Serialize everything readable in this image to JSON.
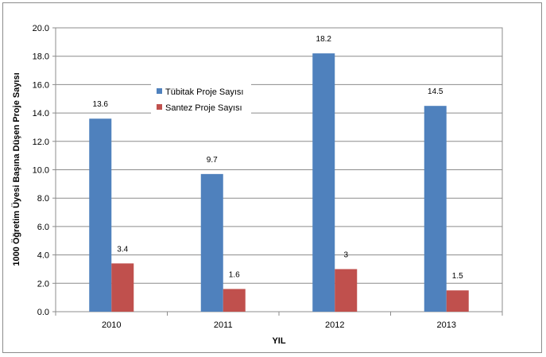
{
  "chart_data": {
    "type": "bar",
    "title": "",
    "xlabel": "YIL",
    "ylabel": "1000 Öğretim Üyesi Başına Düşen Proje Sayısı",
    "categories": [
      "2010",
      "2011",
      "2012",
      "2013"
    ],
    "ylim": [
      0,
      20
    ],
    "yticks": [
      "0.0",
      "2.0",
      "4.0",
      "6.0",
      "8.0",
      "10.0",
      "12.0",
      "14.0",
      "16.0",
      "18.0",
      "20.0"
    ],
    "grid": true,
    "legend_position": "upper-left-inside",
    "series": [
      {
        "name": "Tübitak Proje Sayısı",
        "color": "#4f81bd",
        "values": [
          13.6,
          9.7,
          18.2,
          14.5
        ],
        "labels": [
          "13.6",
          "9.7",
          "18.2",
          "14.5"
        ]
      },
      {
        "name": "Santez Proje Sayısı",
        "color": "#c0504d",
        "values": [
          3.4,
          1.6,
          3,
          1.5
        ],
        "labels": [
          "3.4",
          "1.6",
          "3",
          "1.5"
        ]
      }
    ]
  }
}
